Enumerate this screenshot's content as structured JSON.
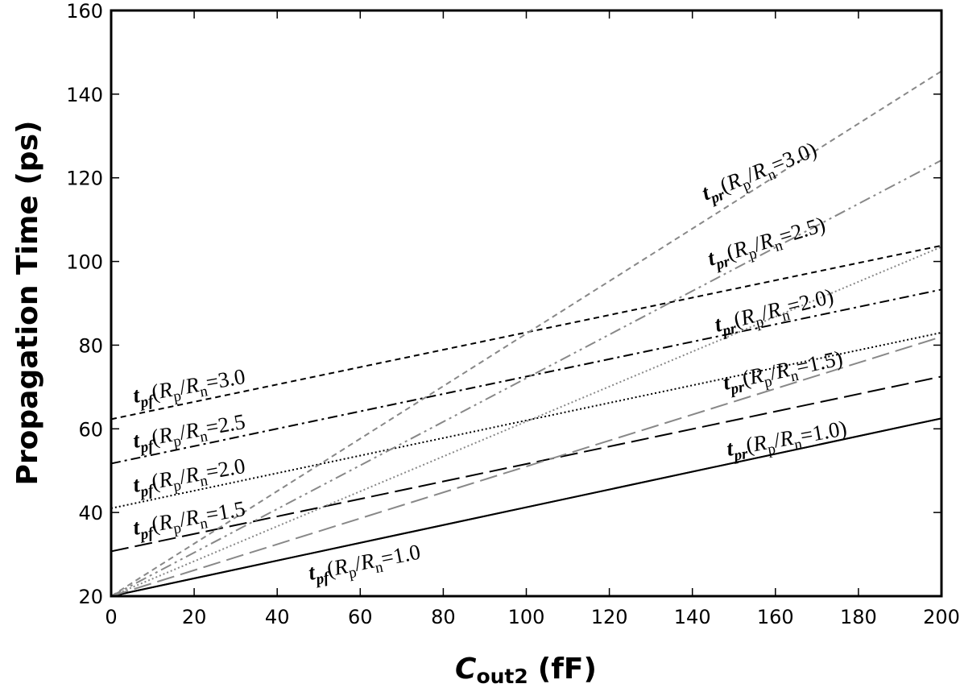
{
  "chart_data": {
    "type": "line",
    "title": "",
    "xlabel": {
      "main": "C",
      "sub": "out2",
      "unit": "(fF)"
    },
    "ylabel": "Propagation Time (ps)",
    "xlim": [
      0,
      200
    ],
    "ylim": [
      20,
      160
    ],
    "xticks": [
      0,
      20,
      40,
      60,
      80,
      100,
      120,
      140,
      160,
      180,
      200
    ],
    "yticks": [
      20,
      40,
      60,
      80,
      100,
      120,
      140,
      160
    ],
    "grid": false,
    "legend": "none",
    "series": [
      {
        "kind": "pf",
        "ratio": "1.0",
        "x": [
          0,
          200
        ],
        "y": [
          20.0,
          62.5
        ],
        "color": "#000000",
        "dash": "solid",
        "width": 2,
        "label": {
          "t": "t",
          "sub": "pf",
          "close": "=1.0"
        }
      },
      {
        "kind": "pf",
        "ratio": "1.5",
        "x": [
          0,
          200
        ],
        "y": [
          30.7,
          72.5
        ],
        "color": "#000000",
        "dash": "longdash",
        "width": 2,
        "label": {
          "t": "t",
          "sub": "pf",
          "close": "=1.5"
        }
      },
      {
        "kind": "pf",
        "ratio": "2.0",
        "x": [
          0,
          200
        ],
        "y": [
          41.0,
          83.0
        ],
        "color": "#000000",
        "dash": "dotted",
        "width": 2,
        "label": {
          "t": "t",
          "sub": "pf",
          "close": "=2.0"
        }
      },
      {
        "kind": "pf",
        "ratio": "2.5",
        "x": [
          0,
          200
        ],
        "y": [
          51.7,
          93.3
        ],
        "color": "#000000",
        "dash": "dashdot",
        "width": 2,
        "label": {
          "t": "t",
          "sub": "pf",
          "close": "=2.5"
        }
      },
      {
        "kind": "pf",
        "ratio": "3.0",
        "x": [
          0,
          200
        ],
        "y": [
          62.3,
          103.8
        ],
        "color": "#000000",
        "dash": "shortdash",
        "width": 2,
        "label": {
          "t": "t",
          "sub": "pf",
          "close": "=3.0"
        }
      },
      {
        "kind": "pr",
        "ratio": "1.0",
        "x": [
          0,
          200
        ],
        "y": [
          20.0,
          62.5
        ],
        "color": "#000000",
        "dash": "solid",
        "width": 2,
        "label": {
          "t": "t",
          "sub": "pr",
          "close": "=1.0)"
        }
      },
      {
        "kind": "pr",
        "ratio": "1.5",
        "x": [
          0,
          200
        ],
        "y": [
          20.0,
          82.0
        ],
        "color": "#888888",
        "dash": "longdash",
        "width": 2,
        "label": {
          "t": "t",
          "sub": "pr",
          "close": "=1.5)"
        }
      },
      {
        "kind": "pr",
        "ratio": "2.0",
        "x": [
          0,
          200
        ],
        "y": [
          20.0,
          103.5
        ],
        "color": "#888888",
        "dash": "dotted",
        "width": 2,
        "label": {
          "t": "t",
          "sub": "pr",
          "close": "=2.0)"
        }
      },
      {
        "kind": "pr",
        "ratio": "2.5",
        "x": [
          0,
          200
        ],
        "y": [
          20.0,
          124.2
        ],
        "color": "#888888",
        "dash": "dashdotdot",
        "width": 2,
        "label": {
          "t": "t",
          "sub": "pr",
          "close": "=2.5)"
        }
      },
      {
        "kind": "pr",
        "ratio": "3.0",
        "x": [
          0,
          200
        ],
        "y": [
          20.0,
          145.5
        ],
        "color": "#888888",
        "dash": "shortdash",
        "width": 2,
        "label": {
          "t": "t",
          "sub": "pr",
          "close": "=3.0)"
        }
      }
    ],
    "label_common": {
      "open": "(",
      "R1": "R",
      "s1": "p",
      "slash": "/",
      "R2": "R",
      "s2": "n"
    }
  }
}
